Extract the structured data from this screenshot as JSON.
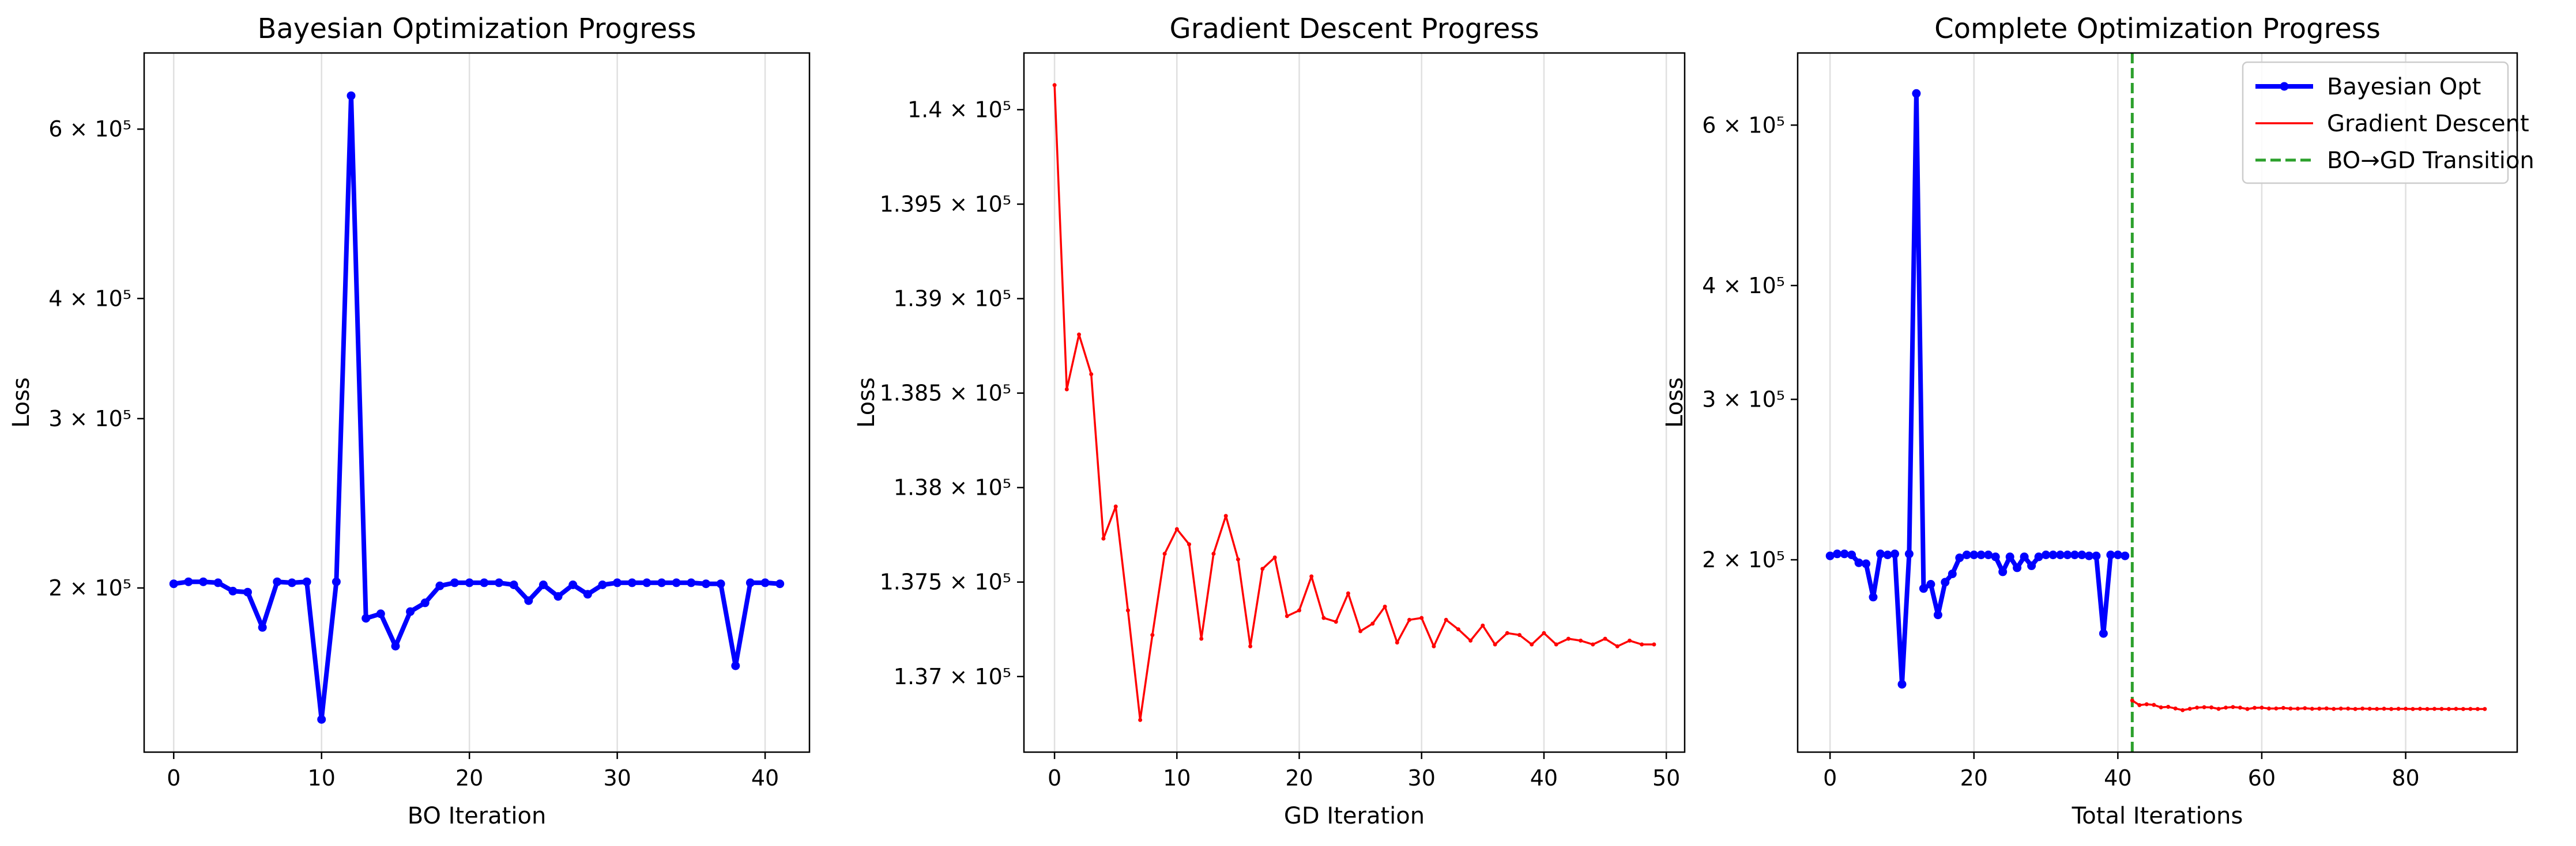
{
  "chart_data": [
    {
      "type": "line",
      "title": "Bayesian Optimization Progress",
      "xlabel": "BO Iteration",
      "ylabel": "Loss",
      "yscale": "log",
      "xlim": [
        -2,
        43
      ],
      "ylim": [
        135000,
        720000
      ],
      "grid": "vertical",
      "xticks": [
        0,
        10,
        20,
        30,
        40
      ],
      "yticks": [
        {
          "value": 200000,
          "label": "2 × 10⁵"
        },
        {
          "value": 300000,
          "label": "3 × 10⁵"
        },
        {
          "value": 400000,
          "label": "4 × 10⁵"
        },
        {
          "value": 600000,
          "label": "6 × 10⁵"
        }
      ],
      "series": [
        {
          "color": "#0000ff",
          "x": [
            0,
            1,
            2,
            3,
            4,
            5,
            6,
            7,
            8,
            9,
            10,
            11,
            12,
            13,
            14,
            15,
            16,
            17,
            18,
            19,
            20,
            21,
            22,
            23,
            24,
            25,
            26,
            27,
            28,
            29,
            30,
            31,
            32,
            33,
            34,
            35,
            36,
            37,
            38,
            39,
            40,
            41
          ],
          "values": [
            202000,
            203000,
            203000,
            202500,
            198500,
            198000,
            182000,
            203000,
            202500,
            203000,
            146000,
            203000,
            650000,
            186000,
            188000,
            174000,
            189000,
            193000,
            201000,
            202500,
            202500,
            202500,
            202500,
            201500,
            194000,
            201500,
            196000,
            201500,
            197000,
            201500,
            202500,
            202500,
            202500,
            202500,
            202500,
            202500,
            202000,
            202000,
            166000,
            202500,
            202500,
            202000
          ]
        }
      ]
    },
    {
      "type": "line",
      "title": "Gradient Descent Progress",
      "xlabel": "GD Iteration",
      "ylabel": "Loss",
      "xlim": [
        -2.5,
        51.5
      ],
      "ylim": [
        136600,
        140300
      ],
      "grid": "vertical",
      "xticks": [
        0,
        10,
        20,
        30,
        40,
        50
      ],
      "yticks": [
        {
          "value": 137000,
          "label": "1.37 × 10⁵"
        },
        {
          "value": 137500,
          "label": "1.375 × 10⁵"
        },
        {
          "value": 138000,
          "label": "1.38 × 10⁵"
        },
        {
          "value": 138500,
          "label": "1.385 × 10⁵"
        },
        {
          "value": 139000,
          "label": "1.39 × 10⁵"
        },
        {
          "value": 139500,
          "label": "1.395 × 10⁵"
        },
        {
          "value": 140000,
          "label": "1.4 × 10⁵"
        }
      ],
      "series": [
        {
          "color": "#ff0000",
          "x": [
            0,
            1,
            2,
            3,
            4,
            5,
            6,
            7,
            8,
            9,
            10,
            11,
            12,
            13,
            14,
            15,
            16,
            17,
            18,
            19,
            20,
            21,
            22,
            23,
            24,
            25,
            26,
            27,
            28,
            29,
            30,
            31,
            32,
            33,
            34,
            35,
            36,
            37,
            38,
            39,
            40,
            41,
            42,
            43,
            44,
            45,
            46,
            47,
            48,
            49
          ],
          "values": [
            140130,
            138520,
            138810,
            138600,
            137730,
            137900,
            137350,
            136770,
            137220,
            137650,
            137780,
            137700,
            137200,
            137650,
            137850,
            137620,
            137160,
            137570,
            137630,
            137320,
            137350,
            137530,
            137310,
            137290,
            137440,
            137240,
            137280,
            137370,
            137180,
            137300,
            137310,
            137160,
            137300,
            137250,
            137190,
            137270,
            137170,
            137230,
            137220,
            137170,
            137230,
            137170,
            137200,
            137190,
            137170,
            137200,
            137160,
            137190,
            137170,
            137170
          ]
        }
      ]
    },
    {
      "type": "line",
      "title": "Complete Optimization Progress",
      "xlabel": "Total Iterations",
      "ylabel": "Loss",
      "yscale": "log",
      "xlim": [
        -4.5,
        95.5
      ],
      "ylim": [
        123000,
        720000
      ],
      "grid": "vertical",
      "xticks": [
        0,
        20,
        40,
        60,
        80
      ],
      "yticks": [
        {
          "value": 200000,
          "label": "2 × 10⁵"
        },
        {
          "value": 300000,
          "label": "3 × 10⁵"
        },
        {
          "value": 400000,
          "label": "4 × 10⁵"
        },
        {
          "value": 600000,
          "label": "6 × 10⁵"
        }
      ],
      "legend": {
        "position": "top-right",
        "entries": [
          "Bayesian Opt",
          "Gradient Descent",
          "BO→GD Transition"
        ]
      },
      "transition_x": 42,
      "series": [
        {
          "name": "Bayesian Opt",
          "color": "#0000ff",
          "x": [
            0,
            1,
            2,
            3,
            4,
            5,
            6,
            7,
            8,
            9,
            10,
            11,
            12,
            13,
            14,
            15,
            16,
            17,
            18,
            19,
            20,
            21,
            22,
            23,
            24,
            25,
            26,
            27,
            28,
            29,
            30,
            31,
            32,
            33,
            34,
            35,
            36,
            37,
            38,
            39,
            40,
            41
          ],
          "values": [
            202000,
            203000,
            203000,
            202500,
            198500,
            198000,
            182000,
            203000,
            202500,
            203000,
            146000,
            203000,
            650000,
            186000,
            188000,
            174000,
            189000,
            193000,
            201000,
            202500,
            202500,
            202500,
            202500,
            201500,
            194000,
            201500,
            196000,
            201500,
            197000,
            201500,
            202500,
            202500,
            202500,
            202500,
            202500,
            202500,
            202000,
            202000,
            166000,
            202500,
            202500,
            202000
          ]
        },
        {
          "name": "Gradient Descent",
          "color": "#ff0000",
          "x": [
            42,
            43,
            44,
            45,
            46,
            47,
            48,
            49,
            50,
            51,
            52,
            53,
            54,
            55,
            56,
            57,
            58,
            59,
            60,
            61,
            62,
            63,
            64,
            65,
            66,
            67,
            68,
            69,
            70,
            71,
            72,
            73,
            74,
            75,
            76,
            77,
            78,
            79,
            80,
            81,
            82,
            83,
            84,
            85,
            86,
            87,
            88,
            89,
            90,
            91
          ],
          "values": [
            140130,
            138520,
            138810,
            138600,
            137730,
            137900,
            137350,
            136770,
            137220,
            137650,
            137780,
            137700,
            137200,
            137650,
            137850,
            137620,
            137160,
            137570,
            137630,
            137320,
            137350,
            137530,
            137310,
            137290,
            137440,
            137240,
            137280,
            137370,
            137180,
            137300,
            137310,
            137160,
            137300,
            137250,
            137190,
            137270,
            137170,
            137230,
            137220,
            137170,
            137230,
            137170,
            137200,
            137190,
            137170,
            137200,
            137160,
            137190,
            137170,
            137170
          ]
        }
      ]
    }
  ]
}
